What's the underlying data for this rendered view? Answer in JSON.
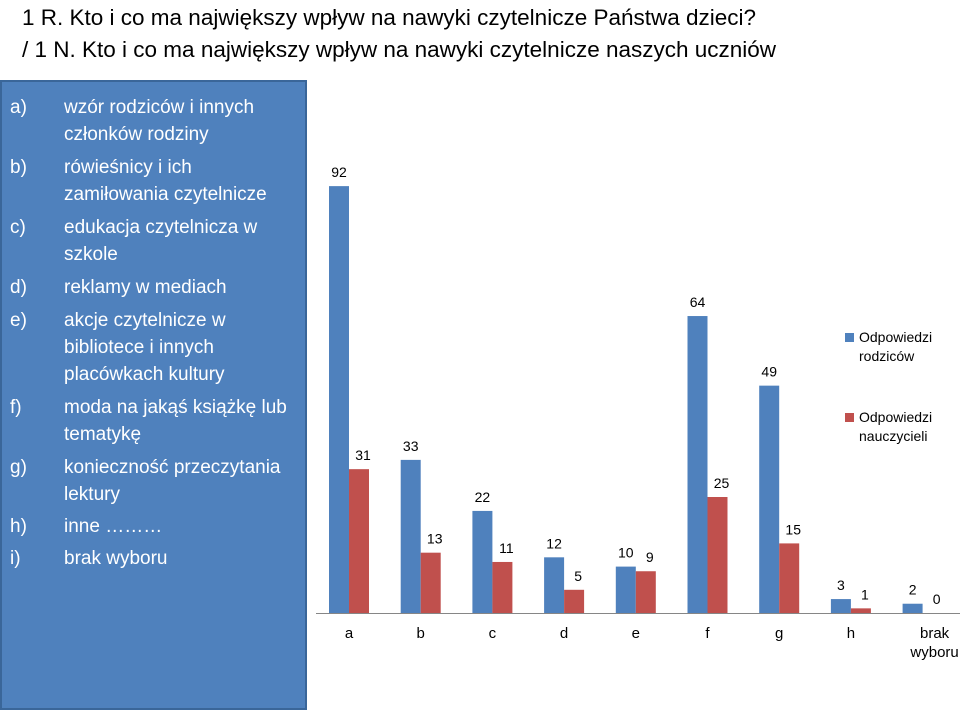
{
  "title": {
    "line1": "1 R. Kto i co ma największy wpływ na nawyki czytelnicze Państwa dzieci?",
    "line2": " / 1 N. Kto i co ma największy wpływ na nawyki czytelnicze naszych uczniów"
  },
  "options": [
    {
      "letter": "a)",
      "text": "wzór rodziców i innych członków rodziny"
    },
    {
      "letter": "b)",
      "text": "rówieśnicy i ich zamiłowania czytelnicze"
    },
    {
      "letter": "c)",
      "text": "edukacja czytelnicza w szkole"
    },
    {
      "letter": "d)",
      "text": "reklamy w mediach"
    },
    {
      "letter": "e)",
      "text": "akcje czytelnicze w bibliotece i innych placówkach kultury"
    },
    {
      "letter": "f)",
      "text": "moda na jakąś książkę lub tematykę"
    },
    {
      "letter": "g)",
      "text": "konieczność przeczytania lektury"
    },
    {
      "letter": "h)",
      "text": "inne ………"
    },
    {
      "letter": "i)",
      "text": "brak wyboru"
    }
  ],
  "colors": {
    "panel": "#4f81bd",
    "series1": "#4f81bd",
    "series2": "#c0504d"
  },
  "chart_data": {
    "type": "bar",
    "categories": [
      "a",
      "b",
      "c",
      "d",
      "e",
      "f",
      "g",
      "h",
      "brak wyboru"
    ],
    "series": [
      {
        "name": "Odpowiedzi rodziców",
        "values": [
          92,
          33,
          22,
          12,
          10,
          64,
          49,
          3,
          2
        ]
      },
      {
        "name": "Odpowiedzi nauczycieli",
        "values": [
          31,
          13,
          11,
          5,
          9,
          25,
          15,
          1,
          0
        ]
      }
    ],
    "ylim": [
      0,
      100
    ],
    "grid": false,
    "legend": "right",
    "data_labels": true
  }
}
